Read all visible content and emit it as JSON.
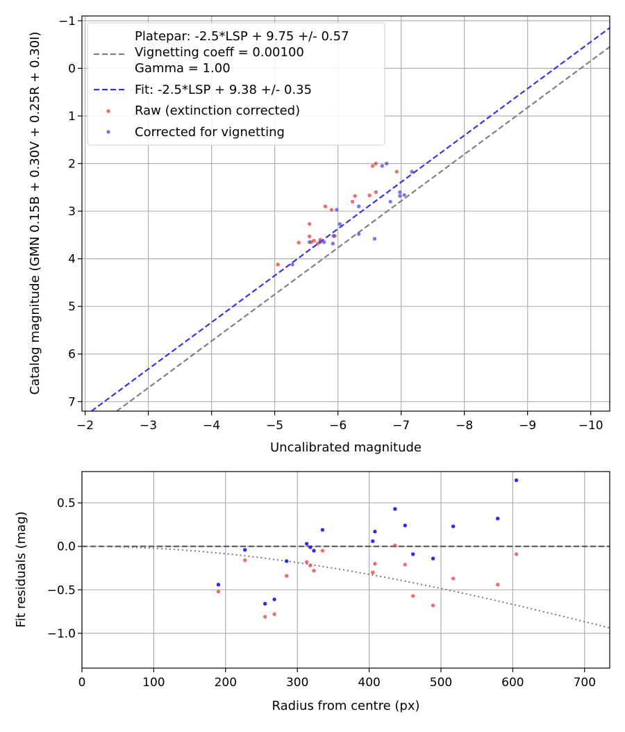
{
  "chart_data": [
    {
      "type": "scatter",
      "xlabel": "Uncalibrated magnitude",
      "ylabel": "Catalog magnitude (GMN 0.15B + 0.30V + 0.25R + 0.30I)",
      "xlim": [
        -1.95,
        -10.3
      ],
      "ylim": [
        7.2,
        -1.1
      ],
      "xticks": [
        -2,
        -3,
        -4,
        -5,
        -6,
        -7,
        -8,
        -9,
        -10
      ],
      "xtick_labels": [
        "−2",
        "−3",
        "−4",
        "−5",
        "−6",
        "−7",
        "−8",
        "−9",
        "−10"
      ],
      "yticks": [
        -1,
        0,
        1,
        2,
        3,
        4,
        5,
        6,
        7
      ],
      "ytick_labels": [
        "−1",
        "0",
        "1",
        "2",
        "3",
        "4",
        "5",
        "6",
        "7"
      ],
      "grid": true,
      "legend_position": "top-left",
      "legend": {
        "platepar_line1": "Platepar: -2.5*LSP + 9.75 +/- 0.57",
        "platepar_line2": "Vignetting coeff = 0.00100",
        "platepar_line3": "Gamma = 1.00",
        "fit": "Fit: -2.5*LSP + 9.38 +/- 0.35",
        "raw": "Raw (extinction corrected)",
        "corrected": "Corrected for vignetting"
      },
      "lines": [
        {
          "name": "platepar",
          "color": "#808080",
          "style": "dashed",
          "x": [
            -2.5,
            -10.3
          ],
          "y": [
            7.2,
            -0.45
          ]
        },
        {
          "name": "fit",
          "color": "#3333ee",
          "style": "dashed",
          "x": [
            -2.1,
            -10.3
          ],
          "y": [
            7.2,
            -0.85
          ]
        }
      ],
      "series": [
        {
          "name": "raw",
          "color": "#ee3333",
          "points": [
            [
              -5.05,
              4.12
            ],
            [
              -5.38,
              3.66
            ],
            [
              -5.55,
              3.53
            ],
            [
              -5.55,
              3.27
            ],
            [
              -5.58,
              3.65
            ],
            [
              -5.62,
              3.62
            ],
            [
              -5.68,
              3.68
            ],
            [
              -5.72,
              3.6
            ],
            [
              -5.8,
              2.9
            ],
            [
              -5.9,
              2.97
            ],
            [
              -5.95,
              3.52
            ],
            [
              -6.23,
              2.8
            ],
            [
              -6.27,
              2.68
            ],
            [
              -6.5,
              2.67
            ],
            [
              -6.55,
              2.05
            ],
            [
              -6.6,
              2.0
            ],
            [
              -6.6,
              2.6
            ],
            [
              -6.93,
              2.17
            ]
          ]
        },
        {
          "name": "corrected",
          "color": "#4444ee",
          "points": [
            [
              -5.28,
              4.12
            ],
            [
              -5.55,
              3.65
            ],
            [
              -5.72,
              3.65
            ],
            [
              -5.78,
              3.65
            ],
            [
              -5.92,
              3.68
            ],
            [
              -5.93,
              3.52
            ],
            [
              -5.98,
              2.97
            ],
            [
              -6.03,
              3.27
            ],
            [
              -6.33,
              2.9
            ],
            [
              -6.33,
              3.48
            ],
            [
              -6.58,
              3.58
            ],
            [
              -6.7,
              2.05
            ],
            [
              -6.77,
              2.0
            ],
            [
              -6.83,
              2.8
            ],
            [
              -6.98,
              2.6
            ],
            [
              -6.98,
              2.68
            ],
            [
              -7.05,
              2.66
            ],
            [
              -7.17,
              2.17
            ]
          ]
        }
      ]
    },
    {
      "type": "scatter",
      "xlabel": "Radius from centre (px)",
      "ylabel": "Fit residuals (mag)",
      "xlim": [
        0,
        735
      ],
      "ylim": [
        -1.4,
        0.86
      ],
      "xticks": [
        0,
        100,
        200,
        300,
        400,
        500,
        600,
        700
      ],
      "xtick_labels": [
        "0",
        "100",
        "200",
        "300",
        "400",
        "500",
        "600",
        "700"
      ],
      "yticks": [
        0.5,
        0.0,
        -0.5,
        -1.0
      ],
      "ytick_labels": [
        "0.5",
        "0.0",
        "−0.5",
        "−1.0"
      ],
      "grid": true,
      "zero_line": {
        "y": 0,
        "color": "#555555",
        "style": "dashed"
      },
      "vignetting_curve": {
        "color": "#777777",
        "style": "dotted",
        "coeff": 0.001,
        "x_start": 0,
        "x_end": 735
      },
      "series": [
        {
          "name": "raw",
          "color": "#ee3333",
          "points": [
            [
              190,
              -0.52
            ],
            [
              227,
              -0.16
            ],
            [
              255,
              -0.81
            ],
            [
              268,
              -0.78
            ],
            [
              285,
              -0.34
            ],
            [
              313,
              -0.18
            ],
            [
              318,
              -0.22
            ],
            [
              323,
              -0.28
            ],
            [
              335,
              -0.05
            ],
            [
              405,
              -0.3
            ],
            [
              408,
              -0.2
            ],
            [
              436,
              0.01
            ],
            [
              450,
              -0.21
            ],
            [
              461,
              -0.57
            ],
            [
              489,
              -0.68
            ],
            [
              517,
              -0.37
            ],
            [
              579,
              -0.44
            ],
            [
              605,
              -0.09
            ]
          ]
        },
        {
          "name": "corrected",
          "color": "#2222ee",
          "points": [
            [
              190,
              -0.44
            ],
            [
              227,
              -0.04
            ],
            [
              255,
              -0.66
            ],
            [
              268,
              -0.61
            ],
            [
              285,
              -0.17
            ],
            [
              313,
              0.03
            ],
            [
              318,
              -0.01
            ],
            [
              323,
              -0.05
            ],
            [
              335,
              0.19
            ],
            [
              405,
              0.06
            ],
            [
              408,
              0.17
            ],
            [
              436,
              0.43
            ],
            [
              450,
              0.24
            ],
            [
              461,
              -0.09
            ],
            [
              489,
              -0.14
            ],
            [
              517,
              0.23
            ],
            [
              579,
              0.32
            ],
            [
              605,
              0.76
            ]
          ]
        }
      ]
    }
  ]
}
